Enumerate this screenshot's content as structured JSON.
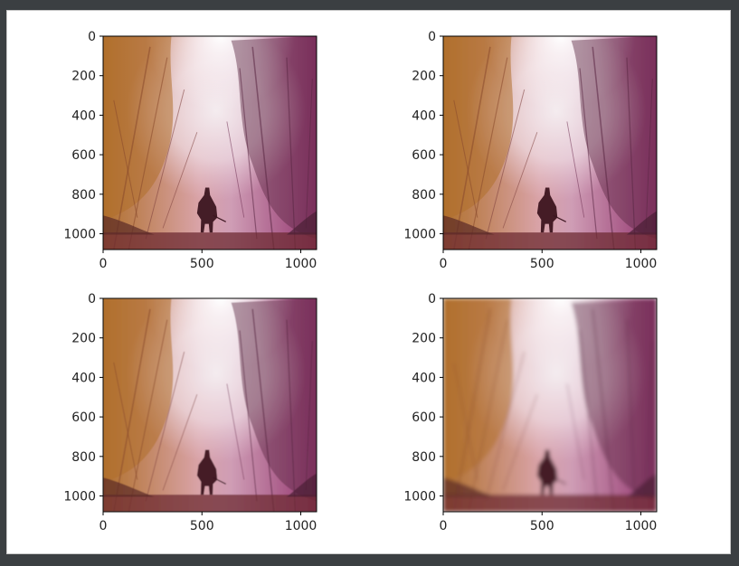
{
  "chart_data": [
    {
      "type": "image",
      "position": "top-left",
      "image_size": [
        1080,
        1080
      ],
      "xlim": [
        0,
        1080
      ],
      "ylim": [
        1080,
        0
      ],
      "xticks": [
        0,
        500,
        1000
      ],
      "yticks": [
        0,
        200,
        400,
        600,
        800,
        1000
      ],
      "xtick_labels": [
        "0",
        "500",
        "1000"
      ],
      "ytick_labels": [
        "0",
        "200",
        "400",
        "600",
        "800",
        "1000"
      ],
      "blur": 0
    },
    {
      "type": "image",
      "position": "top-right",
      "image_size": [
        1080,
        1080
      ],
      "xlim": [
        0,
        1080
      ],
      "ylim": [
        1080,
        0
      ],
      "xticks": [
        0,
        500,
        1000
      ],
      "yticks": [
        0,
        200,
        400,
        600,
        800,
        1000
      ],
      "xtick_labels": [
        "0",
        "500",
        "1000"
      ],
      "ytick_labels": [
        "0",
        "200",
        "400",
        "600",
        "800",
        "1000"
      ],
      "blur": 0.3
    },
    {
      "type": "image",
      "position": "bottom-left",
      "image_size": [
        1080,
        1080
      ],
      "xlim": [
        0,
        1080
      ],
      "ylim": [
        1080,
        0
      ],
      "xticks": [
        0,
        500,
        1000
      ],
      "yticks": [
        0,
        200,
        400,
        600,
        800,
        1000
      ],
      "xtick_labels": [
        "0",
        "500",
        "1000"
      ],
      "ytick_labels": [
        "0",
        "200",
        "400",
        "600",
        "800",
        "1000"
      ],
      "blur": 0.5
    },
    {
      "type": "image",
      "position": "bottom-right",
      "image_size": [
        1080,
        1080
      ],
      "xlim": [
        0,
        1080
      ],
      "ylim": [
        1080,
        0
      ],
      "xticks": [
        0,
        500,
        1000
      ],
      "yticks": [
        0,
        200,
        400,
        600,
        800,
        1000
      ],
      "xtick_labels": [
        "0",
        "500",
        "1000"
      ],
      "ytick_labels": [
        "0",
        "200",
        "400",
        "600",
        "800",
        "1000"
      ],
      "blur": 2.2
    }
  ],
  "image_palette": {
    "left_warm": "#b0702c",
    "center_haze": "#f4ecef",
    "right_magenta": "#93356f",
    "ground_dark": "#6e2b33",
    "silhouette": "#3c1620",
    "foliage": "#5a2743"
  },
  "colors": {
    "axis": "#000000",
    "tick_text": "#222222",
    "figure_bg": "#ffffff",
    "window_bg": "#3b3f42"
  }
}
